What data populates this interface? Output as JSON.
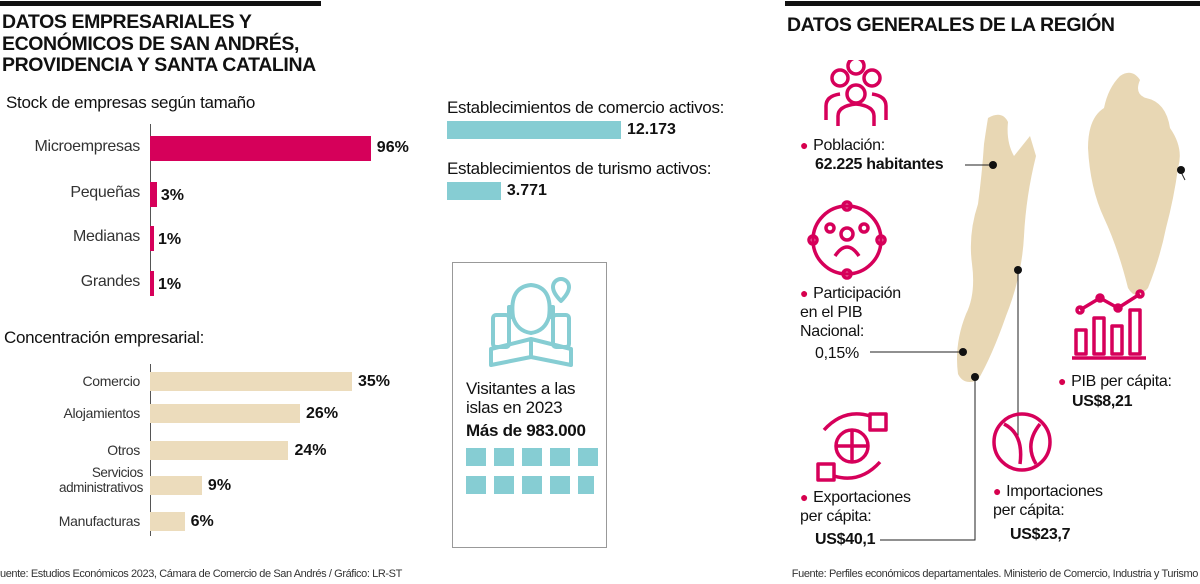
{
  "left": {
    "title": "DATOS EMPRESARIALES Y\nECONÓMICOS DE SAN ANDRÉS,\nPROVIDENCIA Y SANTA CATALINA",
    "footer": "uente: Estudios Económicos 2023, Cámara de Comercio de San Andrés / Gráfico: LR-ST"
  },
  "chart_data": [
    {
      "type": "bar",
      "title": "Stock de empresas según tamaño",
      "categories": [
        "Microempresas",
        "Pequeñas",
        "Medianas",
        "Grandes"
      ],
      "values": [
        96,
        3,
        1,
        1
      ],
      "labels": [
        "96%",
        "3%",
        "1%",
        "1%"
      ],
      "unit": "%",
      "color": "#d6005a"
    },
    {
      "type": "bar",
      "title": "Concentración empresarial:",
      "categories": [
        "Comercio",
        "Alojamientos",
        "Otros",
        "Servicios administrativos",
        "Manufacturas"
      ],
      "values": [
        35,
        26,
        24,
        9,
        6
      ],
      "labels": [
        "35%",
        "26%",
        "24%",
        "9%",
        "6%"
      ],
      "unit": "%",
      "color": "#ecdcbc"
    },
    {
      "type": "bar",
      "categories": [
        "Establecimientos de comercio activos:",
        "Establecimientos de turismo activos:"
      ],
      "values": [
        12173,
        3771
      ],
      "labels": [
        "12.173",
        "3.771"
      ],
      "color": "#86cdd3"
    }
  ],
  "visitors": {
    "icon": "tourist-with-map-icon",
    "text": "Visitantes a las\nislas en 2023",
    "value": "Más de 983.000",
    "squares_filled": 9.8,
    "squares_total": 10
  },
  "right": {
    "title": "DATOS GENERALES DE LA REGIÓN",
    "poblacion": {
      "label": "Población:",
      "value": "62.225 habitantes",
      "icon": "people-group-icon"
    },
    "pib": {
      "label": "Participación\nen el PIB\nNacional:",
      "value": "0,15%",
      "icon": "network-people-icon"
    },
    "export": {
      "label": "Exportaciones\nper cápita:",
      "value": "US$40,1",
      "icon": "globe-export-icon"
    },
    "import": {
      "label": "Importaciones\nper cápita:",
      "value": "US$23,7",
      "icon": "globe-import-icon"
    },
    "pibpc": {
      "label": "PIB per cápita:",
      "value": "US$8,21",
      "icon": "growth-chart-icon"
    },
    "footer": "Fuente: Perfiles económicos departamentales. Ministerio de Comercio, Industria y Turismo"
  },
  "colors": {
    "magenta": "#d6005a",
    "sand": "#ecdcbc",
    "teal": "#86cdd3",
    "map": "#e8d7b4"
  }
}
